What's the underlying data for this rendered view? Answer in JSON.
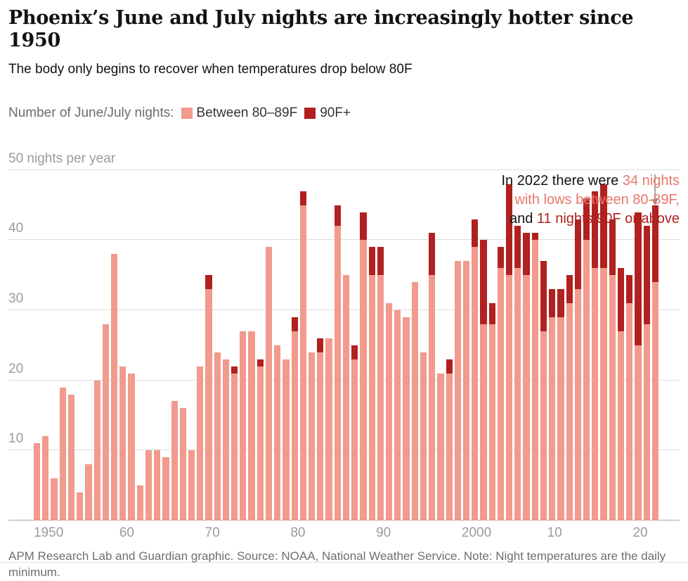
{
  "header": {
    "title": "Phoenix’s June and July nights are increasingly hotter since 1950",
    "subtitle": "The body only begins to recover when temperatures drop below 80F"
  },
  "legend": {
    "prefix": "Number of June/July nights:",
    "items": [
      {
        "label": "Between 80–89F"
      },
      {
        "label": "90F+"
      }
    ]
  },
  "annotation": {
    "line1_black": "In 2022 there were ",
    "line1_salmon": "34 nights",
    "line2_salmon": "with lows between 80-89F,",
    "line3_black": "and ",
    "line3_red": "11 nights 90F or above"
  },
  "footer": {
    "text": "APM Research Lab and Guardian graphic. Source: NOAA, National Weather Service. Note: Night temperatures are the daily minimum."
  },
  "colors": {
    "light": "#f19a8d",
    "dark": "#b0211f",
    "annotation_light": "#ea7868",
    "annotation_dark": "#b0211f",
    "grid": "#dedede",
    "axis_text": "#9b9b9b",
    "arrow": "#8a8a8a"
  },
  "chart_data": {
    "type": "bar",
    "stacked": true,
    "title": "Phoenix’s June and July nights are increasingly hotter since 1950",
    "xlabel": "",
    "ylabel": "nights per year",
    "ylim": [
      0,
      50
    ],
    "grid": true,
    "legend_position": "top-left",
    "yticks": [
      {
        "value": 0,
        "label": ""
      },
      {
        "value": 10,
        "label": "10"
      },
      {
        "value": 20,
        "label": "20"
      },
      {
        "value": 30,
        "label": "30"
      },
      {
        "value": 40,
        "label": "40"
      },
      {
        "value": 50,
        "label": "50 nights per year"
      }
    ],
    "xticks": [
      {
        "index": 0,
        "label": "1950"
      },
      {
        "index": 10,
        "label": "60"
      },
      {
        "index": 20,
        "label": "70"
      },
      {
        "index": 30,
        "label": "80"
      },
      {
        "index": 40,
        "label": "90"
      },
      {
        "index": 50,
        "label": "2000"
      },
      {
        "index": 60,
        "label": "10"
      },
      {
        "index": 70,
        "label": "20"
      }
    ],
    "years": [
      1950,
      1951,
      1952,
      1953,
      1954,
      1955,
      1956,
      1957,
      1958,
      1959,
      1960,
      1961,
      1962,
      1963,
      1964,
      1965,
      1966,
      1967,
      1968,
      1969,
      1970,
      1971,
      1972,
      1973,
      1974,
      1975,
      1976,
      1977,
      1978,
      1979,
      1980,
      1981,
      1982,
      1983,
      1984,
      1985,
      1986,
      1987,
      1988,
      1989,
      1990,
      1991,
      1992,
      1993,
      1994,
      1995,
      1996,
      1997,
      1998,
      1999,
      2000,
      2001,
      2002,
      2003,
      2004,
      2005,
      2006,
      2007,
      2008,
      2009,
      2010,
      2011,
      2012,
      2013,
      2014,
      2015,
      2016,
      2017,
      2018,
      2019,
      2020,
      2021,
      2022
    ],
    "series": [
      {
        "name": "Between 80–89F",
        "color": "#f19a8d",
        "values": [
          11,
          12,
          6,
          19,
          18,
          4,
          8,
          20,
          28,
          38,
          22,
          21,
          5,
          10,
          10,
          9,
          17,
          16,
          10,
          22,
          33,
          24,
          23,
          21,
          27,
          27,
          22,
          39,
          25,
          23,
          27,
          45,
          24,
          24,
          26,
          42,
          35,
          23,
          40,
          35,
          35,
          31,
          30,
          29,
          34,
          24,
          35,
          21,
          21,
          37,
          37,
          39,
          28,
          28,
          36,
          35,
          36,
          35,
          40,
          27,
          29,
          29,
          31,
          33,
          40,
          36,
          36,
          35,
          27,
          31,
          25,
          28,
          34
        ]
      },
      {
        "name": "90F+",
        "color": "#b0211f",
        "values": [
          0,
          0,
          0,
          0,
          0,
          0,
          0,
          0,
          0,
          0,
          0,
          0,
          0,
          0,
          0,
          0,
          0,
          0,
          0,
          0,
          2,
          0,
          0,
          1,
          0,
          0,
          1,
          0,
          0,
          0,
          2,
          2,
          0,
          2,
          0,
          3,
          0,
          2,
          4,
          4,
          4,
          0,
          0,
          0,
          0,
          0,
          6,
          0,
          2,
          0,
          0,
          4,
          12,
          3,
          3,
          13,
          6,
          6,
          1,
          10,
          4,
          4,
          4,
          10,
          6,
          11,
          12,
          8,
          9,
          4,
          19,
          14,
          11
        ]
      }
    ],
    "annotation_values": {
      "year": 2022,
      "nights_80_89": 34,
      "nights_90_plus": 11
    }
  }
}
